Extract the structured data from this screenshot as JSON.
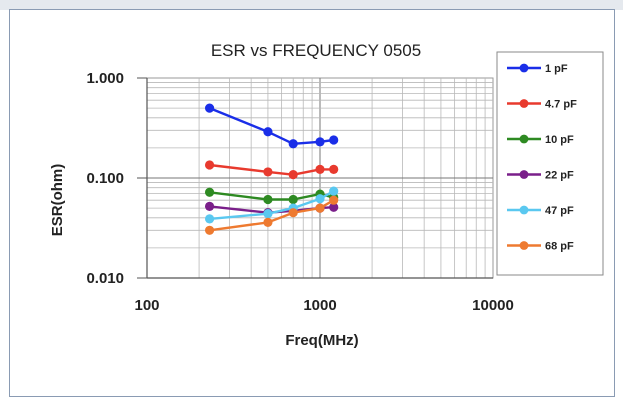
{
  "chart_data": {
    "type": "line",
    "title": "ESR vs FREQUENCY 0505",
    "xlabel": "Freq(MHz)",
    "ylabel": "ESR(ohm)",
    "x_scale": "log",
    "y_scale": "log",
    "xlim": [
      100,
      10000
    ],
    "ylim": [
      0.01,
      1.0
    ],
    "x_ticks": [
      {
        "value": 100,
        "label": "100"
      },
      {
        "value": 1000,
        "label": "1000"
      },
      {
        "value": 10000,
        "label": "10000"
      }
    ],
    "y_ticks": [
      {
        "value": 0.01,
        "label": "0.010"
      },
      {
        "value": 0.1,
        "label": "0.100"
      },
      {
        "value": 1.0,
        "label": "1.000"
      }
    ],
    "grid": true,
    "legend_position": "right",
    "series": [
      {
        "name": "1 pF",
        "color": "#1a2ee8",
        "x": [
          230,
          500,
          700,
          1000,
          1200
        ],
        "y": [
          0.5,
          0.29,
          0.22,
          0.23,
          0.24
        ]
      },
      {
        "name": "4.7 pF",
        "color": "#e83a2e",
        "x": [
          230,
          500,
          700,
          1000,
          1200
        ],
        "y": [
          0.135,
          0.115,
          0.108,
          0.122,
          0.122
        ]
      },
      {
        "name": "10 pF",
        "color": "#2e8a22",
        "x": [
          230,
          500,
          700,
          1000,
          1200
        ],
        "y": [
          0.072,
          0.061,
          0.061,
          0.069,
          0.064
        ]
      },
      {
        "name": "22 pF",
        "color": "#7a1f8a",
        "x": [
          230,
          500,
          700,
          1000,
          1200
        ],
        "y": [
          0.052,
          0.045,
          0.047,
          0.05,
          0.051
        ]
      },
      {
        "name": "47 pF",
        "color": "#5ac8f0",
        "x": [
          230,
          500,
          700,
          1000,
          1200
        ],
        "y": [
          0.039,
          0.044,
          0.05,
          0.062,
          0.074
        ]
      },
      {
        "name": "68 pF",
        "color": "#ee7a30",
        "x": [
          230,
          500,
          700,
          1000,
          1200
        ],
        "y": [
          0.03,
          0.036,
          0.045,
          0.05,
          0.06
        ]
      }
    ]
  }
}
